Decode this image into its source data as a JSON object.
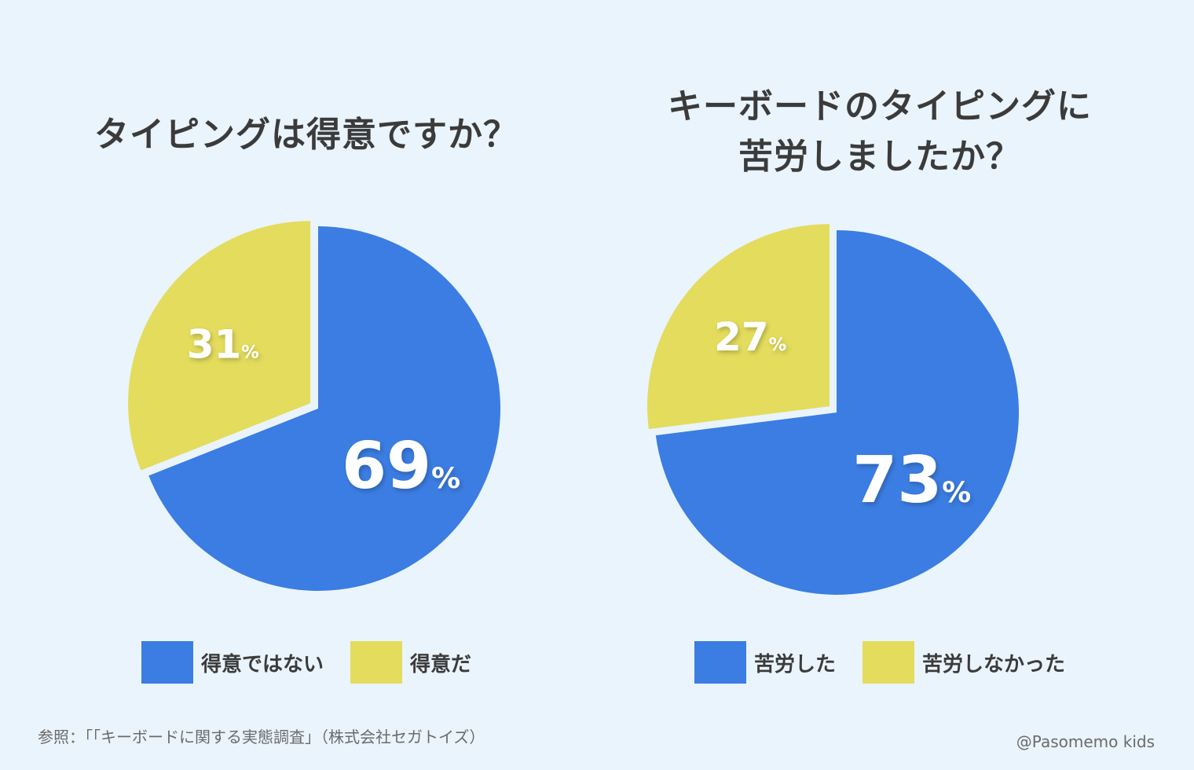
{
  "colors": {
    "blue": "#3b7de2",
    "yellow": "#e3dc5d"
  },
  "chart_data": [
    {
      "type": "pie",
      "title": "タイピングは得意ですか？",
      "slices": [
        {
          "label": "得意ではない",
          "value": 69,
          "display": "69",
          "color": "#3b7de2"
        },
        {
          "label": "得意だ",
          "value": 31,
          "display": "31",
          "color": "#e3dc5d"
        }
      ],
      "unit": "%",
      "legend_position": "bottom"
    },
    {
      "type": "pie",
      "title": "キーボードのタイピングに\n苦労しましたか？",
      "slices": [
        {
          "label": "苦労した",
          "value": 73,
          "display": "73",
          "color": "#3b7de2"
        },
        {
          "label": "苦労しなかった",
          "value": 27,
          "display": "27",
          "color": "#e3dc5d"
        }
      ],
      "unit": "%",
      "legend_position": "bottom"
    }
  ],
  "footer": {
    "source": "参照：「「キーボードに関する実態調査」（株式会社セガトイズ）",
    "credit": "@Pasomemo kids"
  }
}
